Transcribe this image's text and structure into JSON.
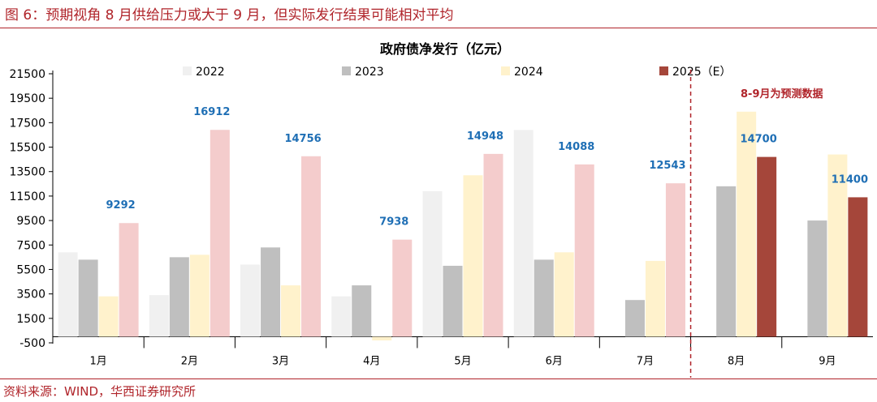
{
  "figure": {
    "title": "图 6：预期视角 8 月供给压力或大于 9 月，但实际发行结果可能相对平均",
    "source": "资料来源：WIND，华西证券研究所"
  },
  "colors": {
    "2022": "#f0f0f0",
    "2023": "#bfbfbf",
    "2024": "#fff2cc",
    "2025": "#f4cccc",
    "2025_forecast": "#a5463a",
    "accent": "#b0242a",
    "data_label": "#1f6fb5"
  },
  "chart_data": {
    "type": "bar",
    "title": "政府债净发行（亿元）",
    "categories": [
      "1月",
      "2月",
      "3月",
      "4月",
      "5月",
      "6月",
      "7月",
      "8月",
      "9月"
    ],
    "ylim": [
      -500,
      21500
    ],
    "yticks": [
      -500,
      1500,
      3500,
      5500,
      7500,
      9500,
      11500,
      13500,
      15500,
      17500,
      19500,
      21500
    ],
    "legend_position": "top",
    "series": [
      {
        "name": "2022",
        "values": [
          6900,
          3400,
          5900,
          3300,
          11900,
          16900,
          0,
          null,
          null
        ]
      },
      {
        "name": "2023",
        "values": [
          6300,
          6500,
          7300,
          4200,
          5800,
          6300,
          3000,
          12300,
          9500
        ]
      },
      {
        "name": "2024",
        "values": [
          3300,
          6700,
          4200,
          -300,
          13200,
          6900,
          6200,
          18400,
          14900
        ]
      },
      {
        "name": "2025（E）",
        "values": [
          9292,
          16912,
          14756,
          7938,
          14948,
          14088,
          12543,
          14700,
          11400
        ]
      }
    ],
    "data_labels": [
      "9292",
      "16912",
      "14756",
      "7938",
      "14948",
      "14088",
      "12543",
      "14700",
      "11400"
    ],
    "forecast_note": "8-9月为预测数据",
    "forecast_start_index": 7
  }
}
